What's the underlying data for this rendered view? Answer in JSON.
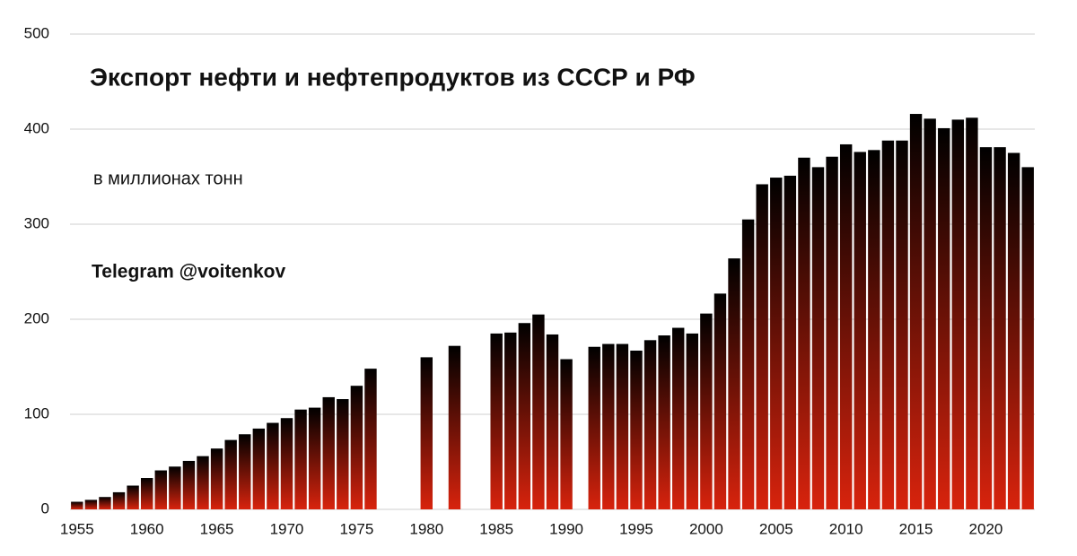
{
  "chart_data": {
    "type": "bar",
    "title": "Экспорт нефти и нефтепродуктов из СССР и РФ",
    "subtitle": "в миллионах тонн",
    "annotation": "Telegram @voitenkov",
    "x": [
      1955,
      1956,
      1957,
      1958,
      1959,
      1960,
      1961,
      1962,
      1963,
      1964,
      1965,
      1966,
      1967,
      1968,
      1969,
      1970,
      1971,
      1972,
      1973,
      1974,
      1975,
      1976,
      1977,
      1978,
      1979,
      1980,
      1981,
      1982,
      1983,
      1984,
      1985,
      1986,
      1987,
      1988,
      1989,
      1990,
      1991,
      1992,
      1993,
      1994,
      1995,
      1996,
      1997,
      1998,
      1999,
      2000,
      2001,
      2002,
      2003,
      2004,
      2005,
      2006,
      2007,
      2008,
      2009,
      2010,
      2011,
      2012,
      2013,
      2014,
      2015,
      2016,
      2017,
      2018,
      2019,
      2020,
      2021,
      2022,
      2023
    ],
    "values": [
      8,
      10,
      13,
      18,
      25,
      33,
      41,
      45,
      51,
      56,
      64,
      73,
      79,
      85,
      91,
      96,
      105,
      107,
      118,
      116,
      130,
      148,
      null,
      null,
      null,
      160,
      null,
      172,
      null,
      null,
      185,
      186,
      196,
      205,
      184,
      158,
      null,
      171,
      174,
      174,
      167,
      178,
      183,
      191,
      185,
      206,
      227,
      264,
      305,
      342,
      349,
      351,
      370,
      360,
      371,
      384,
      376,
      378,
      388,
      388,
      416,
      411,
      401,
      410,
      412,
      381,
      381,
      375,
      360
    ],
    "gradient": [
      "#000000",
      "#d8230d"
    ],
    "xlim": [
      1954.5,
      2023.5
    ],
    "xticks": [
      1955,
      1960,
      1965,
      1970,
      1975,
      1980,
      1985,
      1990,
      1995,
      2000,
      2005,
      2010,
      2015,
      2020
    ],
    "ylim": [
      0,
      500
    ],
    "yticks": [
      0,
      100,
      200,
      300,
      400,
      500
    ],
    "grid": true
  }
}
